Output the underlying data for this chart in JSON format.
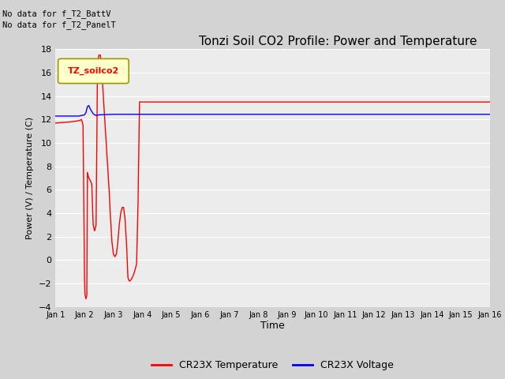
{
  "title": "Tonzi Soil CO2 Profile: Power and Temperature",
  "xlabel": "Time",
  "ylabel": "Power (V) / Temperature (C)",
  "ylim": [
    -4,
    18
  ],
  "xlim": [
    0,
    15
  ],
  "xtick_labels": [
    "Jan 1",
    "Jan 2",
    "Jan 3",
    "Jan 4",
    "Jan 5",
    "Jan 6",
    "Jan 7",
    "Jan 8",
    "Jan 9",
    "Jan 10",
    "Jan 11",
    "Jan 12",
    "Jan 13",
    "Jan 14",
    "Jan 15",
    "Jan 16"
  ],
  "ytick_values": [
    -4,
    -2,
    0,
    2,
    4,
    6,
    8,
    10,
    12,
    14,
    16,
    18
  ],
  "top_left_text1": "No data for f_T2_BattV",
  "top_left_text2": "No data for f_T2_PanelT",
  "legend_box_label": "TZ_soilco2",
  "legend_entries": [
    "CR23X Temperature",
    "CR23X Voltage"
  ],
  "red_x": [
    0.0,
    0.5,
    0.8,
    0.9,
    0.95,
    1.0,
    1.02,
    1.05,
    1.08,
    1.1,
    1.15,
    1.2,
    1.25,
    1.3,
    1.35,
    1.4,
    1.45,
    1.5,
    1.55,
    1.6,
    1.65,
    1.7,
    1.75,
    1.8,
    1.85,
    1.9,
    1.95,
    2.0,
    2.05,
    2.1,
    2.15,
    2.2,
    2.25,
    2.3,
    2.35,
    2.4,
    2.45,
    2.5,
    2.55,
    2.6,
    2.65,
    2.7,
    2.75,
    2.8,
    2.85,
    2.9,
    2.95,
    3.0,
    3.5,
    15.0
  ],
  "red_y": [
    11.7,
    11.8,
    11.9,
    12.0,
    11.5,
    -1.5,
    -3.0,
    -3.3,
    -3.0,
    7.5,
    7.0,
    6.8,
    6.5,
    3.0,
    2.5,
    3.0,
    17.0,
    17.5,
    17.5,
    16.0,
    14.0,
    12.0,
    10.0,
    8.0,
    6.0,
    3.5,
    1.5,
    0.5,
    0.3,
    0.5,
    1.5,
    3.0,
    4.0,
    4.5,
    4.5,
    3.5,
    1.5,
    -1.5,
    -1.8,
    -1.7,
    -1.5,
    -1.2,
    -0.8,
    -0.3,
    5.0,
    13.5,
    13.5,
    13.5,
    13.5,
    13.5
  ],
  "blue_x": [
    0.0,
    0.5,
    0.8,
    0.9,
    1.0,
    1.05,
    1.1,
    1.15,
    1.2,
    1.25,
    1.3,
    1.35,
    1.4,
    1.5,
    2.0,
    2.5,
    3.0,
    3.5,
    15.0
  ],
  "blue_y": [
    12.3,
    12.3,
    12.3,
    12.35,
    12.4,
    12.6,
    13.1,
    13.2,
    12.9,
    12.7,
    12.5,
    12.4,
    12.35,
    12.4,
    12.45,
    12.45,
    12.45,
    12.45,
    12.45
  ]
}
